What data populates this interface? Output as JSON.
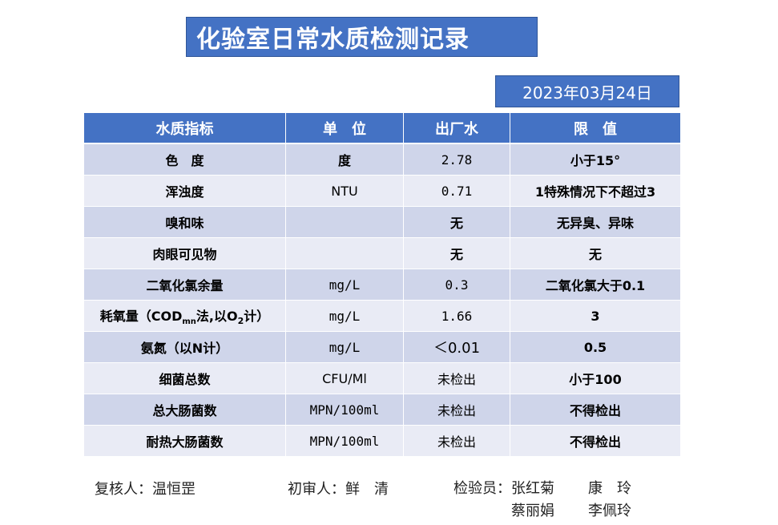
{
  "title": "化验室日常水质检测记录",
  "date": "2023年03月24日",
  "table": {
    "headers": [
      "水质指标",
      "单　位",
      "出厂水",
      "限　值"
    ],
    "rows": [
      {
        "indicator": "色　度",
        "unit": "度",
        "value": "2.78",
        "limit": "小于15°"
      },
      {
        "indicator": "浑浊度",
        "unit": "NTU",
        "value": "0.71",
        "limit": "1特殊情况下不超过3"
      },
      {
        "indicator": "嗅和味",
        "unit": "",
        "value": "无",
        "limit": "无异臭、异味"
      },
      {
        "indicator": "肉眼可见物",
        "unit": "",
        "value": "无",
        "limit": "无"
      },
      {
        "indicator": "二氧化氯余量",
        "unit": "mg/L",
        "value": "0.3",
        "limit": "二氧化氯大于0.1"
      },
      {
        "indicator_parts": {
          "a": "耗氧量（COD",
          "sub1": "mn",
          "b": "法,以O",
          "sub2": "2",
          "c": "计）"
        },
        "unit": "mg/L",
        "value": "1.66",
        "limit": "3"
      },
      {
        "indicator": "氨氮（以N计）",
        "unit": "mg/L",
        "value": "＜0.01",
        "limit": "0.5"
      },
      {
        "indicator": "细菌总数",
        "unit": "CFU/Ml",
        "value": "未检出",
        "limit": "小于100"
      },
      {
        "indicator": "总大肠菌数",
        "unit": "MPN/100ml",
        "value": "未检出",
        "limit": "不得检出"
      },
      {
        "indicator": "耐热大肠菌数",
        "unit": "MPN/100ml",
        "value": "未检出",
        "limit": "不得检出"
      }
    ]
  },
  "footer": {
    "reviewer_label": "复核人：",
    "reviewer": "温恒罡",
    "first_reviewer_label": "初审人：",
    "first_reviewer": "鲜　清",
    "inspector_label": "检验员：",
    "inspectors": [
      [
        "张红菊",
        "康　玲"
      ],
      [
        "蔡丽娟",
        "李佩玲"
      ]
    ]
  },
  "colors": {
    "header_blue": "#4472C4",
    "row_odd": "#CFD5EA",
    "row_even": "#E9EBF5"
  }
}
